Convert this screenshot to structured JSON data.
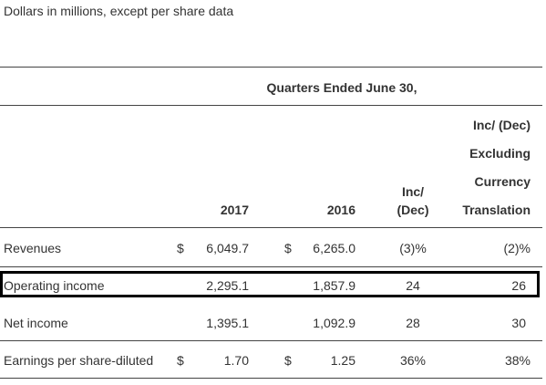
{
  "caption": "Dollars in millions, except per share data",
  "header": {
    "period": "Quarters Ended June 30,",
    "col_2017": "2017",
    "col_2016": "2016",
    "inc_dec_line1": "Inc/",
    "inc_dec_line2": "(Dec)",
    "excl_line1": "Inc/ (Dec)",
    "excl_line2": "Excluding",
    "excl_line3": "Currency",
    "excl_line4": "Translation"
  },
  "rows": [
    {
      "label": "Revenues",
      "cur_2017": "$",
      "val_2017": "6,049.7",
      "cur_2016": "$",
      "val_2016": "6,265.0",
      "inc_dec": "(3)%",
      "excl": "(2)%"
    },
    {
      "label": "Operating income",
      "cur_2017": "",
      "val_2017": "2,295.1",
      "cur_2016": "",
      "val_2016": "1,857.9",
      "inc_dec": "24",
      "excl": "26"
    },
    {
      "label": "Net income",
      "cur_2017": "",
      "val_2017": "1,395.1",
      "cur_2016": "",
      "val_2016": "1,092.9",
      "inc_dec": "28",
      "excl": "30"
    },
    {
      "label": "Earnings per share-diluted",
      "cur_2017": "$",
      "val_2017": "1.70",
      "cur_2016": "$",
      "val_2016": "1.25",
      "inc_dec": "36%",
      "excl": "38%"
    }
  ]
}
